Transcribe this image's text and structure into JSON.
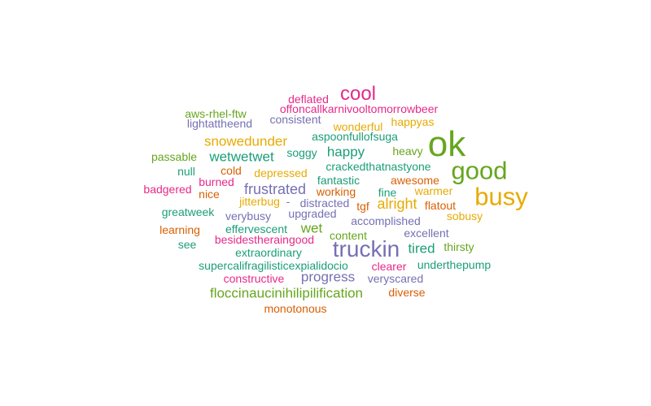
{
  "colors": {
    "teal": "#1b9e77",
    "orange": "#d95f02",
    "purple": "#7570b3",
    "pink": "#e7298a",
    "green": "#66a61e",
    "gold": "#e6ab02"
  },
  "words": [
    {
      "text": "ok",
      "color": "green"
    },
    {
      "text": "busy",
      "color": "gold"
    },
    {
      "text": "good",
      "color": "green"
    },
    {
      "text": "truckin",
      "color": "purple"
    },
    {
      "text": "cool",
      "color": "pink"
    },
    {
      "text": "frustrated",
      "color": "purple"
    },
    {
      "text": "alright",
      "color": "gold"
    },
    {
      "text": "snowedunder",
      "color": "gold"
    },
    {
      "text": "wetwetwet",
      "color": "teal"
    },
    {
      "text": "happy",
      "color": "teal"
    },
    {
      "text": "progress",
      "color": "purple"
    },
    {
      "text": "floccinaucinihilipilification",
      "color": "green"
    },
    {
      "text": "tired",
      "color": "teal"
    },
    {
      "text": "wet",
      "color": "green"
    },
    {
      "text": "deflated",
      "color": "pink"
    },
    {
      "text": "offoncallkarnivooltomorrowbeer",
      "color": "pink"
    },
    {
      "text": "aws-rhel-ftw",
      "color": "green"
    },
    {
      "text": "lightattheend",
      "color": "purple"
    },
    {
      "text": "consistent",
      "color": "purple"
    },
    {
      "text": "wonderful",
      "color": "gold"
    },
    {
      "text": "happyas",
      "color": "gold"
    },
    {
      "text": "aspoonfullofsuga",
      "color": "teal"
    },
    {
      "text": "heavy",
      "color": "green"
    },
    {
      "text": "passable",
      "color": "green"
    },
    {
      "text": "soggy",
      "color": "teal"
    },
    {
      "text": "crackedthatnastyone",
      "color": "teal"
    },
    {
      "text": "null",
      "color": "teal"
    },
    {
      "text": "cold",
      "color": "orange"
    },
    {
      "text": "depressed",
      "color": "gold"
    },
    {
      "text": "burned",
      "color": "pink"
    },
    {
      "text": "fantastic",
      "color": "teal"
    },
    {
      "text": "awesome",
      "color": "orange"
    },
    {
      "text": "badgered",
      "color": "pink"
    },
    {
      "text": "nice",
      "color": "orange"
    },
    {
      "text": "working",
      "color": "orange"
    },
    {
      "text": "fine",
      "color": "teal"
    },
    {
      "text": "warmer",
      "color": "gold"
    },
    {
      "text": "jitterbug",
      "color": "gold"
    },
    {
      "text": "-",
      "color": "purple"
    },
    {
      "text": "distracted",
      "color": "purple"
    },
    {
      "text": "tgf",
      "color": "orange"
    },
    {
      "text": "flatout",
      "color": "orange"
    },
    {
      "text": "greatweek",
      "color": "teal"
    },
    {
      "text": "verybusy",
      "color": "purple"
    },
    {
      "text": "upgraded",
      "color": "purple"
    },
    {
      "text": "sobusy",
      "color": "gold"
    },
    {
      "text": "accomplished",
      "color": "purple"
    },
    {
      "text": "learning",
      "color": "orange"
    },
    {
      "text": "effervescent",
      "color": "teal"
    },
    {
      "text": "content",
      "color": "green"
    },
    {
      "text": "excellent",
      "color": "purple"
    },
    {
      "text": "see",
      "color": "teal"
    },
    {
      "text": "besidestheraingood",
      "color": "pink"
    },
    {
      "text": "thirsty",
      "color": "green"
    },
    {
      "text": "extraordinary",
      "color": "teal"
    },
    {
      "text": "supercalifragilisticexpialidocio",
      "color": "teal"
    },
    {
      "text": "clearer",
      "color": "pink"
    },
    {
      "text": "underthepump",
      "color": "teal"
    },
    {
      "text": "constructive",
      "color": "pink"
    },
    {
      "text": "veryscared",
      "color": "purple"
    },
    {
      "text": "diverse",
      "color": "orange"
    },
    {
      "text": "monotonous",
      "color": "orange"
    }
  ]
}
